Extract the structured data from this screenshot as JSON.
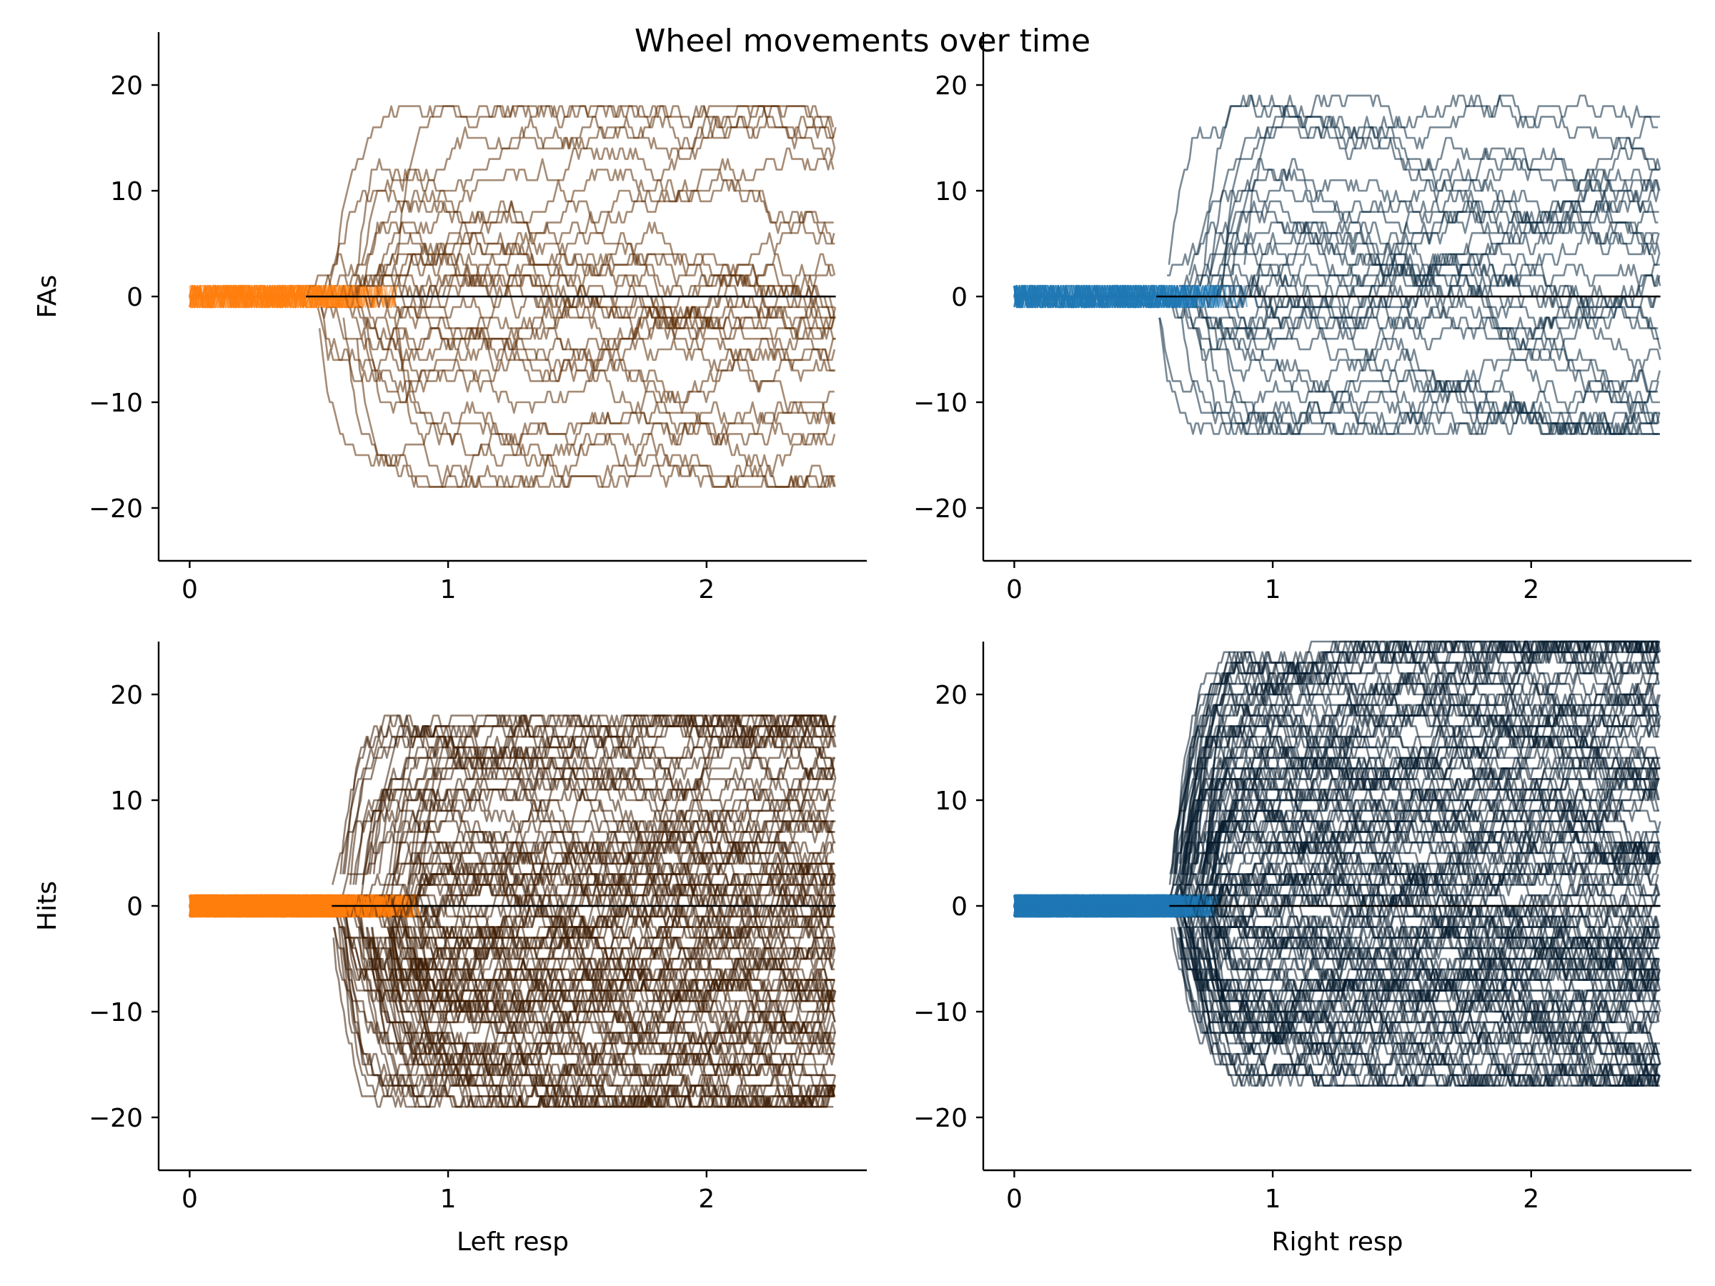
{
  "figure": {
    "title": "Wheel movements over time"
  },
  "chart_data": [
    {
      "type": "line",
      "row": "FAs",
      "side": "left",
      "title": "",
      "xlabel": "",
      "ylabel": "FAs",
      "xlim": [
        -0.12,
        2.62
      ],
      "ylim": [
        -25,
        25
      ],
      "xticks": [
        0,
        1,
        2
      ],
      "yticks": [
        -20,
        -10,
        0,
        10,
        20
      ],
      "grid": false,
      "legend": "none",
      "colors": {
        "pre": "#ff7f0e",
        "post": "#5c2e06"
      },
      "trace_count": 32,
      "onset_range_s": [
        0.45,
        0.85
      ],
      "amplitude_range": [
        -18,
        18
      ],
      "max_duration_s": 2.5,
      "seed": 11
    },
    {
      "type": "line",
      "row": "FAs",
      "side": "right",
      "title": "",
      "xlabel": "",
      "ylabel": "",
      "xlim": [
        -0.12,
        2.62
      ],
      "ylim": [
        -25,
        25
      ],
      "xticks": [
        0,
        1,
        2
      ],
      "yticks": [
        -20,
        -10,
        0,
        10,
        20
      ],
      "grid": false,
      "legend": "none",
      "colors": {
        "pre": "#1f77b4",
        "post": "#0b2a40"
      },
      "trace_count": 34,
      "onset_range_s": [
        0.55,
        0.95
      ],
      "amplitude_range": [
        -13,
        19
      ],
      "max_duration_s": 2.5,
      "seed": 23
    },
    {
      "type": "line",
      "row": "Hits",
      "side": "left",
      "title": "",
      "xlabel": "Left resp",
      "ylabel": "Hits",
      "xlim": [
        -0.12,
        2.62
      ],
      "ylim": [
        -25,
        25
      ],
      "xticks": [
        0,
        1,
        2
      ],
      "yticks": [
        -20,
        -10,
        0,
        10,
        20
      ],
      "grid": false,
      "legend": "none",
      "colors": {
        "pre": "#ff7f0e",
        "post": "#3d1c02"
      },
      "trace_count": 110,
      "onset_range_s": [
        0.55,
        0.9
      ],
      "amplitude_range": [
        -19,
        18
      ],
      "max_duration_s": 2.5,
      "seed": 37
    },
    {
      "type": "line",
      "row": "Hits",
      "side": "right",
      "title": "",
      "xlabel": "Right resp",
      "ylabel": "",
      "xlim": [
        -0.12,
        2.62
      ],
      "ylim": [
        -25,
        25
      ],
      "xticks": [
        0,
        1,
        2
      ],
      "yticks": [
        -20,
        -10,
        0,
        10,
        20
      ],
      "grid": false,
      "legend": "none",
      "colors": {
        "pre": "#1f77b4",
        "post": "#061c2e"
      },
      "trace_count": 140,
      "onset_range_s": [
        0.6,
        0.8
      ],
      "amplitude_range": [
        -17,
        25
      ],
      "max_duration_s": 2.5,
      "seed": 53
    }
  ]
}
